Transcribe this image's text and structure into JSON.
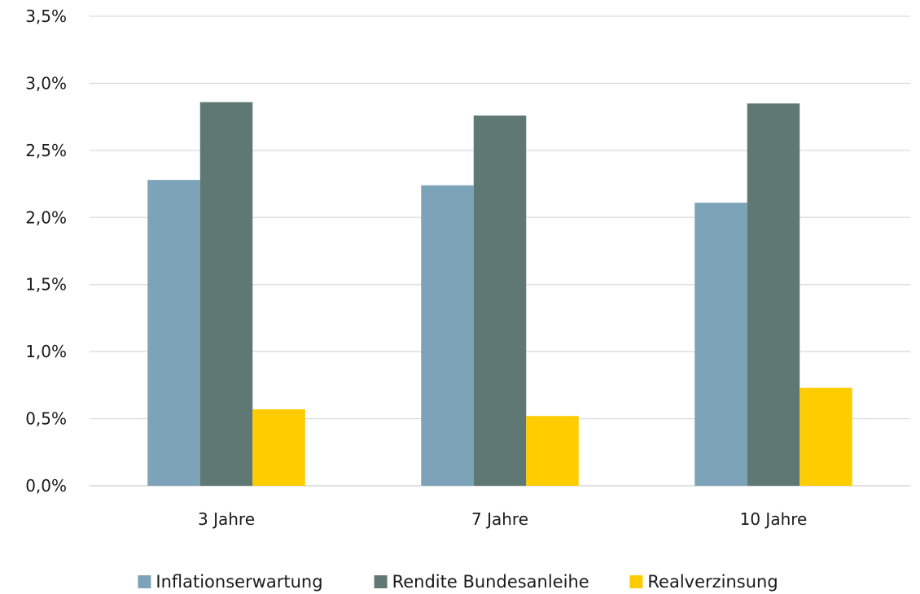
{
  "chart_data": {
    "type": "bar",
    "categories": [
      "3 Jahre",
      "7 Jahre",
      "10 Jahre"
    ],
    "series": [
      {
        "name": "Inflationserwartung",
        "values": [
          2.28,
          2.24,
          2.11
        ],
        "color": "#7da3b8"
      },
      {
        "name": "Rendite Bundesanleihe",
        "values": [
          2.86,
          2.76,
          2.85
        ],
        "color": "#5f7873"
      },
      {
        "name": "Realverzinsung",
        "values": [
          0.57,
          0.52,
          0.73
        ],
        "color": "#ffcc00"
      }
    ],
    "y_ticks": [
      "0,0%",
      "0,5%",
      "1,0%",
      "1,5%",
      "2,0%",
      "2,5%",
      "3,0%",
      "3,5%"
    ],
    "ylim": [
      0,
      3.5
    ],
    "grid": true,
    "legend_position": "bottom",
    "title": "",
    "xlabel": "",
    "ylabel": ""
  }
}
